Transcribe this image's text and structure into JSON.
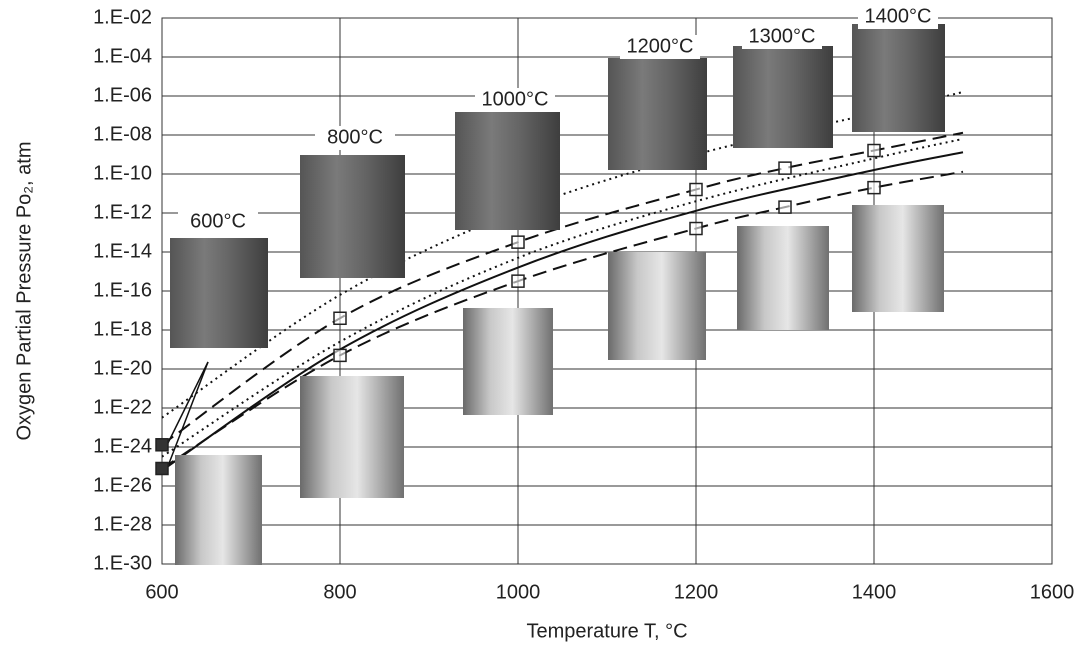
{
  "chart_data": {
    "type": "line",
    "xlabel": "Temperature T, °C",
    "ylabel": "Oxygen Partial Pressure Po₂, atm",
    "xlim": [
      600,
      1600
    ],
    "xticks": [
      600,
      800,
      1000,
      1200,
      1400,
      1600
    ],
    "ylim": [
      1e-30,
      0.01
    ],
    "ylog": true,
    "grid": true,
    "yticks": [
      {
        "value": 0.01,
        "label": "1.E-02"
      },
      {
        "value": 0.0001,
        "label": "1.E-04"
      },
      {
        "value": 1e-06,
        "label": "1.E-06"
      },
      {
        "value": 1e-08,
        "label": "1.E-08"
      },
      {
        "value": 1e-10,
        "label": "1.E-10"
      },
      {
        "value": 1e-12,
        "label": "1.E-12"
      },
      {
        "value": 1e-14,
        "label": "1.E-14"
      },
      {
        "value": 1e-16,
        "label": "1.E-16"
      },
      {
        "value": 1e-18,
        "label": "1.E-18"
      },
      {
        "value": 1e-20,
        "label": "1.E-20"
      },
      {
        "value": 1e-22,
        "label": "1.E-22"
      },
      {
        "value": 1e-24,
        "label": "1.E-24"
      },
      {
        "value": 1e-26,
        "label": "1.E-26"
      },
      {
        "value": 1e-28,
        "label": "1.E-28"
      },
      {
        "value": 1e-30,
        "label": "1.E-30"
      }
    ],
    "series": [
      {
        "color": "#111",
        "dash": "dotted",
        "x": [
          600,
          800,
          1000,
          1200,
          1400,
          1500
        ],
        "values": [
          3.2e-23,
          6.3e-17,
          1.3e-12,
          1e-09,
          1.3e-07,
          1.6e-06
        ]
      },
      {
        "color": "#111",
        "dash": "dashed",
        "x": [
          600,
          800,
          1000,
          1200,
          1300,
          1400,
          1500
        ],
        "values": [
          1.3e-24,
          4e-18,
          3.2e-14,
          1.6e-11,
          2e-10,
          1.6e-09,
          1.3e-08
        ],
        "markers": [
          "filled",
          "open",
          "open",
          "open",
          "open",
          "open",
          null
        ]
      },
      {
        "color": "#111",
        "dash": "dotted",
        "x": [
          600,
          800,
          1000,
          1200,
          1400,
          1500
        ],
        "values": [
          3.2e-25,
          2.5e-19,
          5e-15,
          4e-12,
          6.3e-10,
          6.3e-09
        ]
      },
      {
        "color": "#111",
        "dash": "solid",
        "x": [
          600,
          800,
          1000,
          1200,
          1400,
          1500
        ],
        "values": [
          6.3e-26,
          1e-19,
          1.6e-15,
          1.3e-12,
          1.6e-10,
          1.3e-09
        ]
      },
      {
        "color": "#111",
        "dash": "dashed",
        "x": [
          600,
          800,
          1000,
          1200,
          1300,
          1400,
          1500
        ],
        "values": [
          7.9e-26,
          5e-20,
          3.2e-16,
          1.6e-13,
          2e-12,
          2e-11,
          1.3e-10
        ],
        "markers": [
          "filled",
          "open",
          "open",
          "open",
          "open",
          "open",
          null
        ]
      }
    ],
    "annotations": [
      "600°C",
      "800°C",
      "1000°C",
      "1200°C",
      "1300°C",
      "1400°C"
    ]
  }
}
